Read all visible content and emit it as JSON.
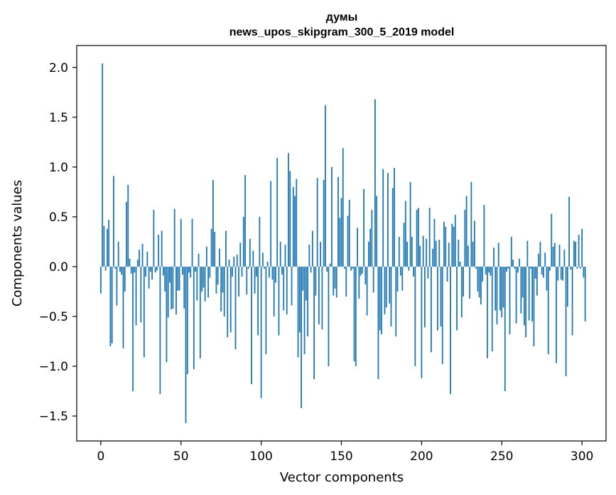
{
  "chart_data": {
    "type": "bar",
    "title_line1": "думы",
    "title_line2": "news_upos_skipgram_300_5_2019 model",
    "xlabel": "Vector components",
    "ylabel": "Components values",
    "xlim": [
      -15,
      315
    ],
    "ylim": [
      -1.75,
      2.22
    ],
    "xticks": [
      0,
      50,
      100,
      150,
      200,
      250,
      300
    ],
    "yticks": [
      -1.5,
      -1.0,
      -0.5,
      0.0,
      0.5,
      1.0,
      1.5,
      2.0
    ],
    "xtick_labels": [
      "0",
      "50",
      "100",
      "150",
      "200",
      "250",
      "300"
    ],
    "ytick_labels": [
      "−1.5",
      "−1.0",
      "−0.5",
      "0.0",
      "0.5",
      "1.0",
      "1.5",
      "2.0"
    ],
    "bar_color": "#1f77b4",
    "values": [
      -0.27,
      2.04,
      0.41,
      -0.04,
      0.38,
      0.47,
      -0.8,
      -0.77,
      0.91,
      -0.02,
      -0.39,
      0.25,
      -0.05,
      -0.08,
      -0.82,
      -0.25,
      0.65,
      0.82,
      0.08,
      -0.07,
      -1.25,
      -0.06,
      -0.59,
      0.07,
      0.17,
      -0.56,
      0.23,
      -0.91,
      -0.1,
      0.15,
      -0.22,
      -0.05,
      -0.13,
      0.57,
      -0.06,
      -0.04,
      0.32,
      -1.28,
      0.36,
      -0.09,
      -0.25,
      -0.96,
      -0.51,
      -0.16,
      -0.43,
      -0.42,
      0.58,
      -0.48,
      -0.24,
      -0.24,
      0.48,
      -0.08,
      -0.42,
      -1.57,
      -1.08,
      -0.06,
      -0.11,
      0.48,
      -1.03,
      -0.05,
      -0.34,
      0.13,
      -0.92,
      -0.25,
      -0.21,
      -0.35,
      0.2,
      -0.31,
      -0.11,
      0.38,
      0.87,
      0.35,
      -0.27,
      -0.18,
      0.18,
      -0.45,
      -0.26,
      -0.5,
      0.36,
      -0.71,
      0.07,
      -0.66,
      -0.1,
      0.1,
      -0.83,
      0.12,
      -0.3,
      0.24,
      -0.1,
      0.5,
      0.92,
      -0.28,
      -0.02,
      0.28,
      -1.18,
      0.16,
      -0.27,
      -0.1,
      -0.69,
      0.5,
      -1.32,
      0.14,
      -0.02,
      -0.88,
      0.05,
      -0.11,
      0.86,
      -0.13,
      -0.5,
      -0.16,
      1.09,
      -0.69,
      0.25,
      -0.08,
      -0.44,
      0.22,
      -0.48,
      1.14,
      0.96,
      -0.39,
      0.8,
      0.71,
      0.88,
      -0.91,
      -0.66,
      -1.42,
      -0.24,
      -0.88,
      -0.34,
      -0.7,
      0.22,
      -0.06,
      0.36,
      -1.13,
      -0.29,
      0.89,
      -0.58,
      0.25,
      -0.63,
      0.87,
      1.62,
      -0.05,
      -1.0,
      0.03,
      1.0,
      -0.29,
      -0.22,
      -0.31,
      0.9,
      0.49,
      0.69,
      1.19,
      -0.02,
      -0.3,
      0.51,
      0.67,
      -0.04,
      -0.02,
      -0.95,
      -1.0,
      0.39,
      -0.32,
      -0.09,
      -0.07,
      0.78,
      -0.18,
      -0.49,
      0.25,
      0.38,
      0.57,
      -0.26,
      1.68,
      0.71,
      -1.13,
      -0.64,
      -0.68,
      0.98,
      -0.48,
      -0.41,
      0.94,
      -0.37,
      -0.6,
      0.79,
      0.99,
      -0.7,
      -0.25,
      0.3,
      -0.09,
      -0.24,
      0.44,
      0.66,
      0.25,
      -0.04,
      0.85,
      0.3,
      -0.1,
      -1.0,
      0.57,
      0.59,
      0.21,
      -1.12,
      0.31,
      -0.61,
      0.28,
      -0.12,
      0.59,
      -0.86,
      0.18,
      0.48,
      0.26,
      -0.64,
      0.27,
      -0.6,
      -0.98,
      0.45,
      0.4,
      -0.15,
      0.24,
      -1.28,
      0.43,
      0.4,
      0.52,
      -0.64,
      0.27,
      0.05,
      -0.51,
      -0.3,
      0.57,
      0.71,
      0.21,
      -0.32,
      0.85,
      0.25,
      0.46,
      -0.02,
      -0.25,
      -0.31,
      -0.38,
      -0.15,
      0.62,
      -0.08,
      -0.92,
      -0.06,
      -0.09,
      -0.85,
      0.19,
      -0.44,
      -0.58,
      0.24,
      -0.44,
      -0.51,
      -0.41,
      -1.25,
      -0.05,
      -0.02,
      -0.68,
      0.3,
      0.07,
      -0.02,
      -0.57,
      -0.06,
      0.08,
      -0.47,
      -0.31,
      -0.59,
      -0.71,
      0.26,
      -0.54,
      -0.02,
      -0.55,
      -0.8,
      -0.12,
      -0.29,
      0.13,
      0.25,
      -0.08,
      -0.11,
      0.14,
      -0.24,
      -0.88,
      -0.04,
      0.53,
      0.2,
      0.24,
      -0.97,
      -0.14,
      0.22,
      -0.13,
      -0.14,
      0.17,
      -1.1,
      -0.4,
      0.7,
      -0.03,
      -0.69,
      0.26,
      0.25,
      -0.02,
      0.32,
      -0.02,
      0.38,
      -0.11,
      -0.55
    ]
  }
}
